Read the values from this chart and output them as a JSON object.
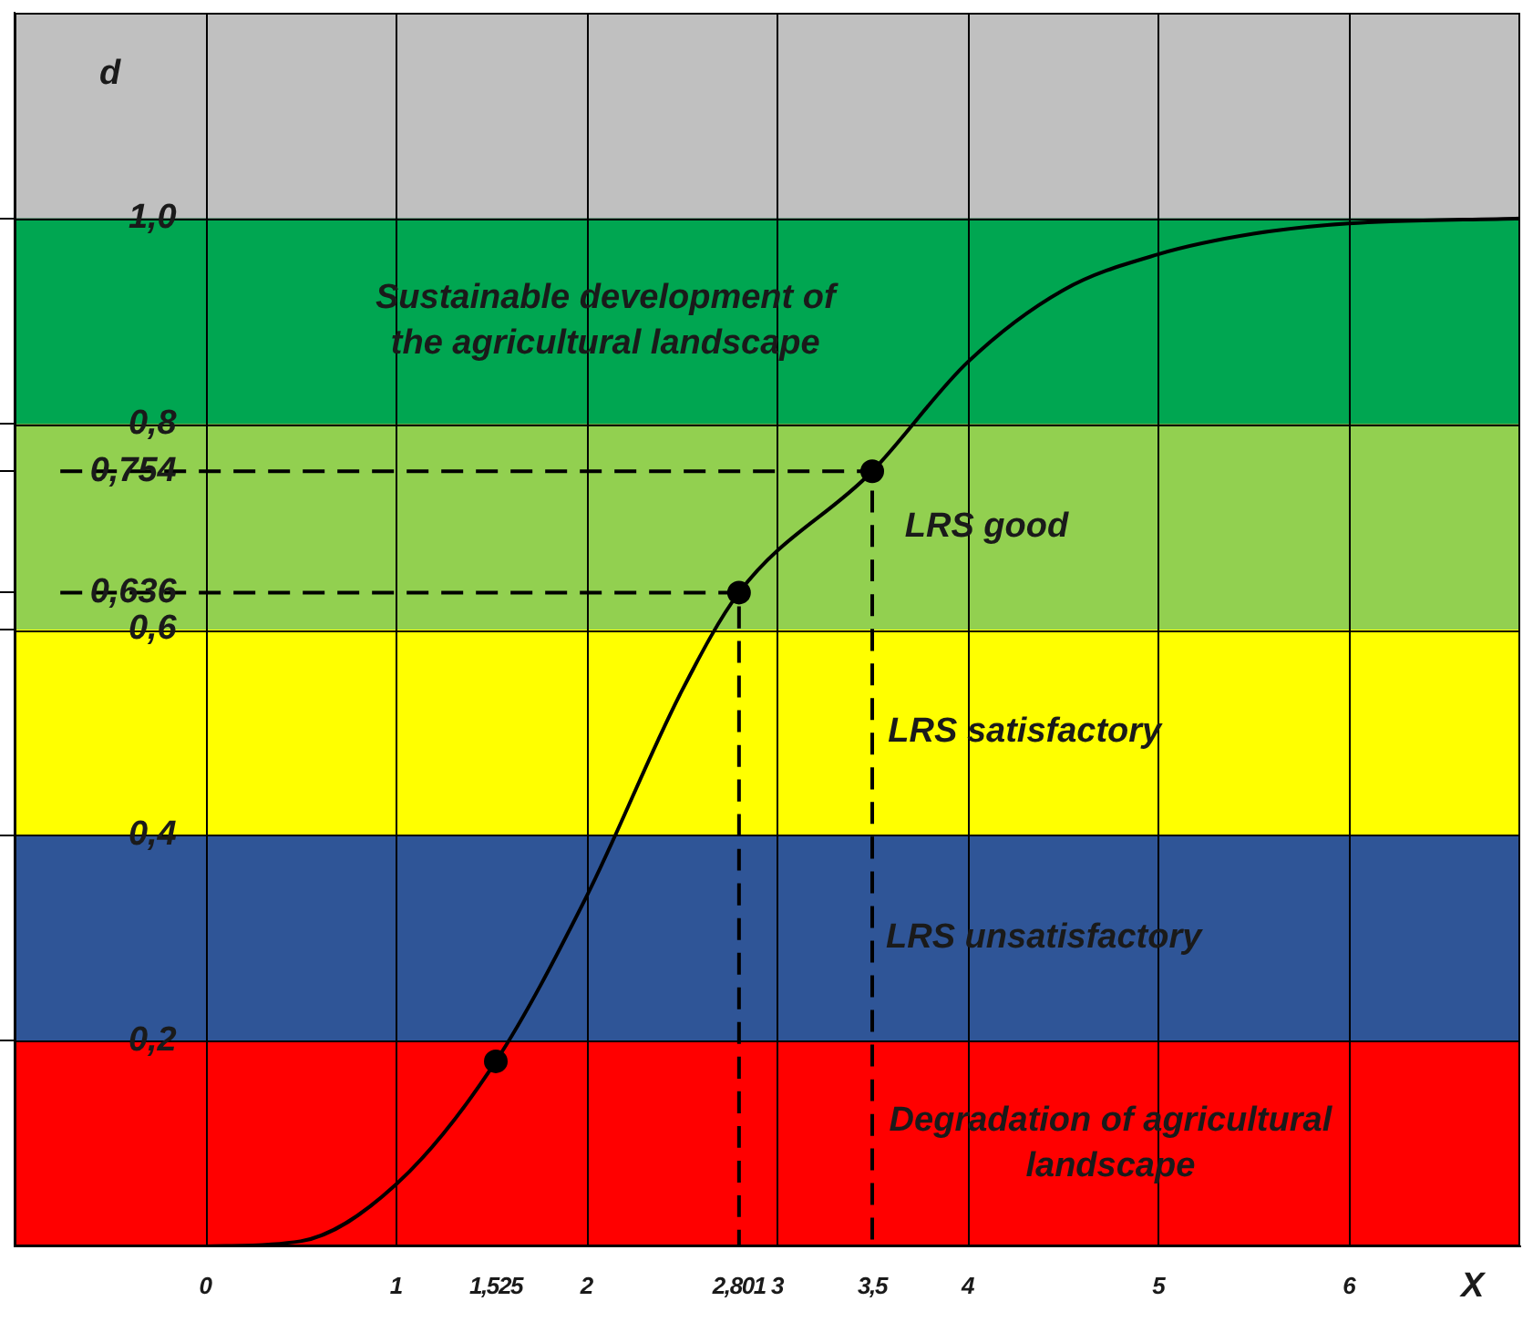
{
  "chart_data": {
    "type": "line",
    "xlabel": "X",
    "ylabel": "d",
    "xlim": [
      -1,
      6.9
    ],
    "xticks": [
      0,
      1,
      {
        "value": 1.525,
        "label": "1,525"
      },
      2,
      {
        "value": 2.801,
        "label": "2,801"
      },
      3,
      {
        "value": 3.5,
        "label": "3,5"
      },
      4,
      5,
      6
    ],
    "ylim": [
      0,
      1.2
    ],
    "yticks": [
      {
        "value": 0.2,
        "label": "0,2"
      },
      {
        "value": 0.4,
        "label": "0,4"
      },
      {
        "value": 0.6,
        "label": "0,6"
      },
      {
        "value": 0.636,
        "label": "0,636"
      },
      {
        "value": 0.754,
        "label": "0,754"
      },
      {
        "value": 0.8,
        "label": "0,8"
      },
      {
        "value": 1.0,
        "label": "1,0"
      }
    ],
    "grid": true,
    "legend": false,
    "bands": [
      {
        "axis": "y",
        "from": 1.0,
        "to": 1.2,
        "color": "#c0c0c0"
      },
      {
        "axis": "y",
        "from": 0.8,
        "to": 1.0,
        "color": "#00a651",
        "label": "Sustainable development of\nthe agricultural landscape"
      },
      {
        "axis": "y",
        "from": 0.6,
        "to": 0.8,
        "color": "#92d050",
        "label": "LRS good"
      },
      {
        "axis": "y",
        "from": 0.4,
        "to": 0.6,
        "color": "#ffff00",
        "label": "LRS satisfactory"
      },
      {
        "axis": "y",
        "from": 0.2,
        "to": 0.4,
        "color": "#2f5597",
        "label": "LRS unsatisfactory"
      },
      {
        "axis": "y",
        "from": 0,
        "to": 0.2,
        "color": "#ff0000",
        "label": "Degradation of agricultural\nlandscape"
      }
    ],
    "series": [
      {
        "color": "#000000",
        "marker": "none",
        "x": [
          0,
          0.5,
          1,
          1.525,
          2,
          2.5,
          2.801,
          3.5,
          4,
          4.5,
          5,
          5.5,
          6,
          6.9
        ],
        "values": [
          0,
          0.005,
          0.06,
          0.18,
          0.34,
          0.54,
          0.636,
          0.754,
          0.86,
          0.93,
          0.965,
          0.985,
          0.995,
          1.0
        ]
      },
      {
        "color": "#000000",
        "marker": "none",
        "line_style": "dashed",
        "x": [
          -0.76,
          2.801,
          2.801
        ],
        "values": [
          0.636,
          0.636,
          0
        ]
      },
      {
        "color": "#000000",
        "marker": "none",
        "line_style": "dashed",
        "x": [
          -0.76,
          3.5,
          3.5
        ],
        "values": [
          0.754,
          0.754,
          0
        ]
      },
      {
        "type": "scatter",
        "color": "#000000",
        "marker": "circle",
        "x": [
          1.525,
          2.801,
          3.5
        ],
        "values": [
          0.18,
          0.636,
          0.754
        ]
      }
    ]
  }
}
